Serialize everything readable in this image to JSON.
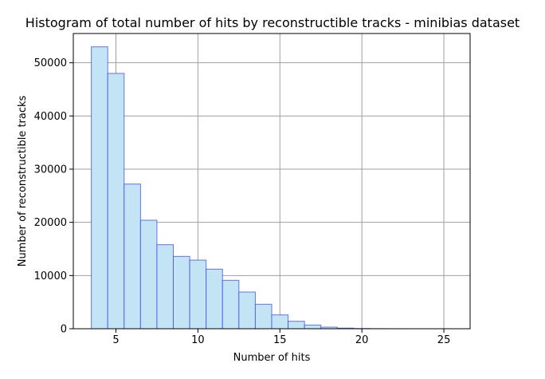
{
  "chart_data": {
    "type": "bar",
    "title": "Histogram of total number of hits by reconstructible tracks - minibias dataset",
    "xlabel": "Number of hits",
    "ylabel": "Number of reconstructible tracks",
    "xlim": [
      2.4,
      26.6
    ],
    "ylim": [
      0,
      55500
    ],
    "xticks": [
      5,
      10,
      15,
      20,
      25
    ],
    "yticks": [
      0,
      10000,
      20000,
      30000,
      40000,
      50000
    ],
    "bin_width": 1,
    "grid": true,
    "bar_fill": "#c3e4f5",
    "bar_edge": "#3b49e8",
    "bins": [
      {
        "x": 4,
        "value": 53000
      },
      {
        "x": 5,
        "value": 48000
      },
      {
        "x": 6,
        "value": 27200
      },
      {
        "x": 7,
        "value": 20400
      },
      {
        "x": 8,
        "value": 15800
      },
      {
        "x": 9,
        "value": 13600
      },
      {
        "x": 10,
        "value": 12900
      },
      {
        "x": 11,
        "value": 11200
      },
      {
        "x": 12,
        "value": 9100
      },
      {
        "x": 13,
        "value": 6900
      },
      {
        "x": 14,
        "value": 4600
      },
      {
        "x": 15,
        "value": 2600
      },
      {
        "x": 16,
        "value": 1400
      },
      {
        "x": 17,
        "value": 700
      },
      {
        "x": 18,
        "value": 300
      },
      {
        "x": 19,
        "value": 120
      },
      {
        "x": 20,
        "value": 40
      },
      {
        "x": 21,
        "value": 15
      },
      {
        "x": 22,
        "value": 5
      },
      {
        "x": 23,
        "value": 2
      },
      {
        "x": 24,
        "value": 1
      },
      {
        "x": 25,
        "value": 1
      }
    ]
  }
}
